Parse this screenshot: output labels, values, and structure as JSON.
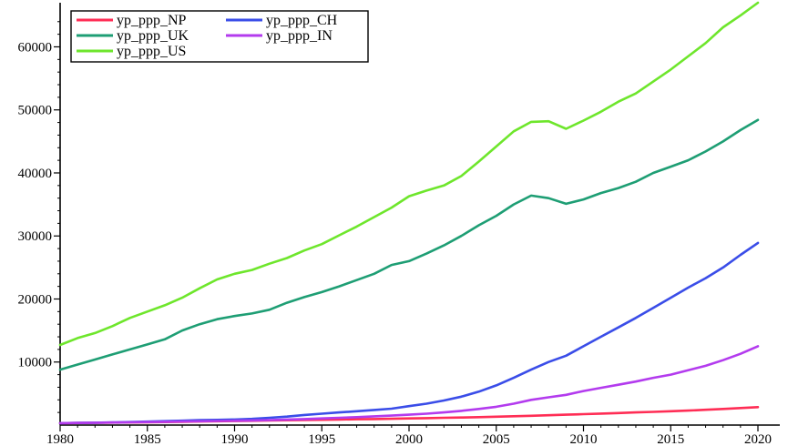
{
  "chart_data": {
    "type": "line",
    "title": "",
    "xlabel": "",
    "ylabel": "",
    "xlim": [
      1980,
      2020
    ],
    "ylim": [
      0,
      67000
    ],
    "grid": false,
    "legend_position": "top-left",
    "x_ticks": [
      1980,
      1985,
      1990,
      1995,
      2000,
      2005,
      2010,
      2015,
      2020
    ],
    "x_tick_labels": [
      "1980",
      "1985",
      "1990",
      "1995",
      "2000",
      "2005",
      "2010",
      "2015",
      "2020"
    ],
    "y_ticks": [
      10000,
      20000,
      30000,
      40000,
      50000,
      60000
    ],
    "y_tick_labels": [
      "10000",
      "20000",
      "30000",
      "40000",
      "50000",
      "60000"
    ],
    "x": [
      1980,
      1981,
      1982,
      1983,
      1984,
      1985,
      1986,
      1987,
      1988,
      1989,
      1990,
      1991,
      1992,
      1993,
      1994,
      1995,
      1996,
      1997,
      1998,
      1999,
      2000,
      2001,
      2002,
      2003,
      2004,
      2005,
      2006,
      2007,
      2008,
      2009,
      2010,
      2011,
      2012,
      2013,
      2014,
      2015,
      2016,
      2017,
      2018,
      2019,
      2020
    ],
    "series": [
      {
        "name": "yp_ppp_NP",
        "color": "#ff2d55",
        "values": [
          300,
          330,
          360,
          390,
          420,
          450,
          480,
          520,
          560,
          600,
          640,
          680,
          720,
          760,
          800,
          840,
          880,
          920,
          960,
          1000,
          1050,
          1100,
          1150,
          1200,
          1260,
          1330,
          1400,
          1480,
          1560,
          1640,
          1730,
          1820,
          1910,
          2000,
          2100,
          2200,
          2300,
          2420,
          2550,
          2700,
          2850
        ]
      },
      {
        "name": "yp_ppp_CH",
        "color": "#3a4de8",
        "values": [
          300,
          340,
          380,
          420,
          480,
          550,
          620,
          700,
          780,
          820,
          880,
          980,
          1150,
          1350,
          1600,
          1800,
          2000,
          2200,
          2400,
          2600,
          3000,
          3400,
          3900,
          4500,
          5300,
          6300,
          7500,
          8800,
          10000,
          11000,
          12500,
          14000,
          15500,
          17000,
          18600,
          20200,
          21800,
          23300,
          25000,
          27000,
          28900
        ]
      },
      {
        "name": "yp_ppp_UK",
        "color": "#1e9e74",
        "values": [
          8800,
          9600,
          10400,
          11200,
          12000,
          12800,
          13600,
          15000,
          16000,
          16800,
          17300,
          17700,
          18300,
          19400,
          20300,
          21100,
          22000,
          23000,
          24000,
          25400,
          26000,
          27200,
          28500,
          30000,
          31700,
          33200,
          35000,
          36400,
          36000,
          35100,
          35800,
          36800,
          37600,
          38600,
          40000,
          41000,
          42000,
          43400,
          45000,
          46800,
          48400
        ]
      },
      {
        "name": "yp_ppp_IN",
        "color": "#b33bee",
        "values": [
          300,
          330,
          360,
          400,
          440,
          480,
          520,
          560,
          600,
          650,
          700,
          740,
          800,
          880,
          960,
          1050,
          1150,
          1260,
          1380,
          1500,
          1650,
          1800,
          2000,
          2250,
          2550,
          2900,
          3400,
          4000,
          4400,
          4800,
          5400,
          5900,
          6400,
          6900,
          7500,
          8000,
          8700,
          9400,
          10300,
          11300,
          12500
        ]
      },
      {
        "name": "yp_ppp_US",
        "color": "#6ee62c",
        "values": [
          12700,
          13800,
          14600,
          15700,
          17000,
          18000,
          19000,
          20200,
          21700,
          23100,
          24000,
          24600,
          25600,
          26500,
          27700,
          28700,
          30100,
          31500,
          33000,
          34500,
          36300,
          37200,
          38000,
          39500,
          41800,
          44200,
          46600,
          48100,
          48200,
          47000,
          48300,
          49700,
          51300,
          52600,
          54500,
          56400,
          58500,
          60600,
          63100,
          65000,
          67000
        ]
      }
    ]
  }
}
